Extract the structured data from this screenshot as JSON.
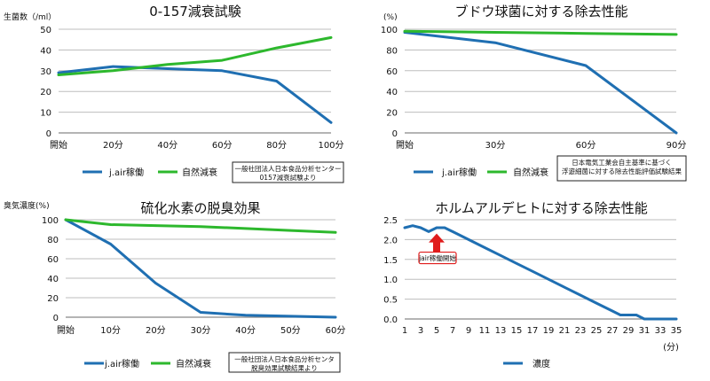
{
  "chart_data": [
    {
      "id": "o157",
      "type": "line",
      "title": "0-157減衰試験",
      "ylabel": "生菌数（/ml）",
      "xlabel": "",
      "categories": [
        "開始",
        "20分",
        "40分",
        "60分",
        "80分",
        "100分"
      ],
      "x": [
        0,
        20,
        40,
        60,
        80,
        100
      ],
      "ylim": [
        0,
        50
      ],
      "yticks": [
        0,
        10,
        20,
        30,
        40,
        50
      ],
      "grid": true,
      "series": [
        {
          "name": "j.air稼働",
          "color": "#1f6fb2",
          "x": [
            0,
            20,
            40,
            60,
            80,
            100
          ],
          "values": [
            29,
            32,
            31,
            30,
            25,
            5
          ]
        },
        {
          "name": "自然減衰",
          "color": "#2db82d",
          "x": [
            0,
            20,
            40,
            60,
            80,
            100
          ],
          "values": [
            28,
            30,
            33,
            35,
            41,
            46
          ]
        }
      ],
      "note": [
        "一般社団法人日本食品分析センター",
        "0157減衰試験より"
      ]
    },
    {
      "id": "grape",
      "type": "line",
      "title": "ブドウ球菌に対する除去性能",
      "ylabel": "(%)",
      "xlabel": "",
      "categories": [
        "開始",
        "30分",
        "60分",
        "90分"
      ],
      "x": [
        0,
        30,
        60,
        90
      ],
      "ylim": [
        0,
        100
      ],
      "yticks": [
        0,
        20,
        40,
        60,
        80,
        100
      ],
      "grid": true,
      "series": [
        {
          "name": "j.air稼働",
          "color": "#1f6fb2",
          "x": [
            0,
            30,
            60,
            90
          ],
          "values": [
            97,
            87,
            65,
            0
          ]
        },
        {
          "name": "自然減衰",
          "color": "#2db82d",
          "x": [
            0,
            30,
            60,
            90
          ],
          "values": [
            98,
            97,
            96,
            95
          ]
        }
      ],
      "note": [
        "日本電気工業会自主基準に基づく",
        "浮遊細菌に対する除去性能評価試験結果"
      ]
    },
    {
      "id": "h2s",
      "type": "line",
      "title": "硫化水素の脱臭効果",
      "ylabel": "臭気濃度(%)",
      "xlabel": "",
      "categories": [
        "開始",
        "10分",
        "20分",
        "30分",
        "40分",
        "50分",
        "60分"
      ],
      "x": [
        0,
        10,
        20,
        30,
        40,
        50,
        60
      ],
      "ylim": [
        0,
        100
      ],
      "yticks": [
        0,
        20,
        40,
        60,
        80,
        100
      ],
      "grid": true,
      "series": [
        {
          "name": "j.air稼働",
          "color": "#1f6fb2",
          "x": [
            0,
            10,
            20,
            30,
            40,
            50,
            60
          ],
          "values": [
            100,
            75,
            35,
            5,
            2,
            1,
            0
          ]
        },
        {
          "name": "自然減衰",
          "color": "#2db82d",
          "x": [
            0,
            10,
            20,
            30,
            40,
            50,
            60
          ],
          "values": [
            100,
            95,
            94,
            93,
            91,
            89,
            87
          ]
        }
      ],
      "note": [
        "一般社団法人日本食品分析センタ",
        "脱臭効果試験結果より"
      ]
    },
    {
      "id": "hcho",
      "type": "line",
      "title": "ホルムアルデヒトに対する除去性能",
      "ylabel": "",
      "xlabel": "(分)",
      "categories": [
        "1",
        "3",
        "5",
        "7",
        "9",
        "11",
        "13",
        "15",
        "17",
        "19",
        "21",
        "23",
        "25",
        "27",
        "29",
        "31",
        "33",
        "35"
      ],
      "x": [
        1,
        3,
        5,
        7,
        9,
        11,
        13,
        15,
        17,
        19,
        21,
        23,
        25,
        27,
        29,
        31,
        33,
        35
      ],
      "xlim": [
        1,
        35
      ],
      "ylim": [
        0,
        2.5
      ],
      "yticks": [
        0,
        0.5,
        1.0,
        1.5,
        2.0,
        2.5
      ],
      "ytick_labels": [
        "0.0",
        "0.5",
        "1.0",
        "1.5",
        "2.0",
        "2.5"
      ],
      "grid": true,
      "series": [
        {
          "name": "濃度",
          "color": "#1f6fb2",
          "x": [
            1,
            2,
            3,
            4,
            5,
            6,
            7,
            9,
            11,
            13,
            15,
            17,
            19,
            21,
            23,
            25,
            27,
            28,
            29,
            30,
            31,
            35
          ],
          "values": [
            2.3,
            2.35,
            2.3,
            2.2,
            2.3,
            2.3,
            2.2,
            2.0,
            1.8,
            1.6,
            1.4,
            1.2,
            1.0,
            0.8,
            0.6,
            0.4,
            0.2,
            0.1,
            0.1,
            0.1,
            0.0,
            0.0
          ]
        }
      ],
      "annotation": {
        "text": "jair稼働開始",
        "x": 5,
        "y": 1.55
      }
    }
  ]
}
